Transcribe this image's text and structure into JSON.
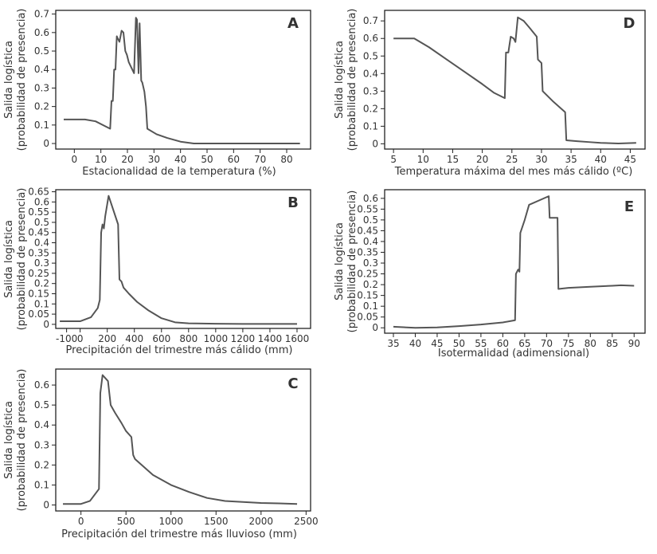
{
  "colors": {
    "frame": "#222222",
    "line": "#555555",
    "text": "#333333",
    "background": "#ffffff"
  },
  "chart_data": [
    {
      "panel": "A",
      "type": "line",
      "xlabel": "Estacionalidad de la temperatura (%)",
      "ylabel": [
        "Salida logística",
        "(probabilidad de presencia)"
      ],
      "xlim": [
        -7,
        89
      ],
      "ylim": [
        -0.03,
        0.72
      ],
      "x_ticks": [
        0,
        10,
        20,
        30,
        40,
        50,
        60,
        70,
        80
      ],
      "y_ticks": [
        0,
        0.1,
        0.2,
        0.3,
        0.4,
        0.5,
        0.6,
        0.7
      ],
      "x": [
        -4,
        4,
        8,
        13.5,
        14,
        14.5,
        15,
        15.5,
        16,
        16.3,
        17,
        17.8,
        18.5,
        19.2,
        19.8,
        20.5,
        21.5,
        22.5,
        23.2,
        23.6,
        24.2,
        24.6,
        25.2,
        25.6,
        26.4,
        27,
        27.5,
        31,
        35,
        40,
        45,
        50,
        60,
        70,
        80,
        85
      ],
      "y": [
        0.13,
        0.13,
        0.12,
        0.08,
        0.23,
        0.23,
        0.4,
        0.4,
        0.58,
        0.57,
        0.55,
        0.61,
        0.6,
        0.5,
        0.48,
        0.44,
        0.41,
        0.38,
        0.68,
        0.67,
        0.38,
        0.65,
        0.34,
        0.33,
        0.28,
        0.2,
        0.08,
        0.05,
        0.03,
        0.01,
        0.0,
        0.0,
        0.0,
        0.0,
        0.0,
        0.0
      ]
    },
    {
      "panel": "B",
      "type": "line",
      "xlabel": "Precipitación del trimestre más cálido (mm)",
      "ylabel": [
        "Salida logística",
        "(probabilidad de presencia)"
      ],
      "xlim": [
        -180,
        1700
      ],
      "ylim": [
        -0.02,
        0.66
      ],
      "x_ticks": [
        -100,
        0,
        200,
        400,
        600,
        800,
        1000,
        1200,
        1400,
        1600
      ],
      "y_ticks": [
        0,
        0.05,
        0.1,
        0.15,
        0.2,
        0.25,
        0.3,
        0.35,
        0.4,
        0.45,
        0.5,
        0.55,
        0.6,
        0.65
      ],
      "x": [
        -150,
        0,
        80,
        130,
        145,
        155,
        165,
        175,
        185,
        210,
        280,
        290,
        305,
        320,
        360,
        420,
        500,
        600,
        700,
        800,
        1000,
        1200,
        1400,
        1600
      ],
      "y": [
        0.015,
        0.015,
        0.035,
        0.08,
        0.12,
        0.45,
        0.49,
        0.47,
        0.53,
        0.63,
        0.49,
        0.22,
        0.21,
        0.18,
        0.15,
        0.11,
        0.07,
        0.03,
        0.01,
        0.005,
        0.003,
        0.002,
        0.002,
        0.002
      ]
    },
    {
      "panel": "C",
      "type": "line",
      "xlabel": "Precipitación del trimestre más lluvioso (mm)",
      "ylabel": [
        "Salida logística",
        "(probabilidad de presencia)"
      ],
      "xlim": [
        -280,
        2550
      ],
      "ylim": [
        -0.03,
        0.68
      ],
      "x_ticks": [
        0,
        500,
        1000,
        1500,
        2000,
        2500
      ],
      "y_ticks": [
        0,
        0.1,
        0.2,
        0.3,
        0.4,
        0.5,
        0.6
      ],
      "x": [
        -200,
        0,
        100,
        200,
        215,
        240,
        260,
        300,
        330,
        380,
        450,
        500,
        560,
        580,
        600,
        700,
        800,
        1000,
        1200,
        1400,
        1600,
        1800,
        2000,
        2200,
        2400
      ],
      "y": [
        0.005,
        0.005,
        0.02,
        0.08,
        0.56,
        0.65,
        0.64,
        0.62,
        0.5,
        0.46,
        0.41,
        0.37,
        0.34,
        0.25,
        0.23,
        0.19,
        0.15,
        0.1,
        0.065,
        0.035,
        0.02,
        0.015,
        0.01,
        0.008,
        0.005
      ]
    },
    {
      "panel": "D",
      "type": "line",
      "xlabel": "Temperatura máxima del mes más cálido (ºC)",
      "ylabel": [
        "Salida logística",
        "(probabilidad de presencia)"
      ],
      "xlim": [
        3.5,
        47.5
      ],
      "ylim": [
        -0.03,
        0.76
      ],
      "x_ticks": [
        5,
        10,
        15,
        20,
        25,
        30,
        35,
        40,
        45
      ],
      "y_ticks": [
        0,
        0.1,
        0.2,
        0.3,
        0.4,
        0.5,
        0.6,
        0.7
      ],
      "x": [
        5,
        8.5,
        11,
        14,
        17,
        20,
        22,
        23.8,
        24,
        24.4,
        24.8,
        25.3,
        25.6,
        26,
        27,
        28,
        29.2,
        29.4,
        30,
        30.2,
        32,
        34,
        34.2,
        36,
        38,
        40,
        43,
        46
      ],
      "y": [
        0.6,
        0.6,
        0.55,
        0.48,
        0.41,
        0.34,
        0.29,
        0.26,
        0.52,
        0.52,
        0.61,
        0.6,
        0.58,
        0.72,
        0.7,
        0.66,
        0.61,
        0.48,
        0.46,
        0.3,
        0.24,
        0.18,
        0.02,
        0.015,
        0.01,
        0.005,
        0.002,
        0.005
      ]
    },
    {
      "panel": "E",
      "type": "line",
      "xlabel": "Isotermalidad (adimensional)",
      "ylabel": [
        "Salida logística",
        "(probabilidad de presencia)"
      ],
      "xlim": [
        33,
        92.5
      ],
      "ylim": [
        -0.025,
        0.64
      ],
      "x_ticks": [
        35,
        40,
        45,
        50,
        55,
        60,
        65,
        70,
        75,
        80,
        85,
        90
      ],
      "y_ticks": [
        0,
        0.05,
        0.1,
        0.15,
        0.2,
        0.25,
        0.3,
        0.35,
        0.4,
        0.45,
        0.5,
        0.55,
        0.6
      ],
      "x": [
        35,
        40,
        45,
        50,
        55,
        60,
        62.8,
        63,
        63.5,
        63.8,
        64,
        65,
        66,
        70.5,
        70.7,
        71,
        72.5,
        72.7,
        75,
        80,
        85,
        87,
        90
      ],
      "y": [
        0.005,
        0.0,
        0.002,
        0.008,
        0.015,
        0.025,
        0.035,
        0.25,
        0.27,
        0.26,
        0.44,
        0.5,
        0.57,
        0.61,
        0.51,
        0.51,
        0.51,
        0.18,
        0.185,
        0.19,
        0.195,
        0.197,
        0.195
      ]
    }
  ]
}
